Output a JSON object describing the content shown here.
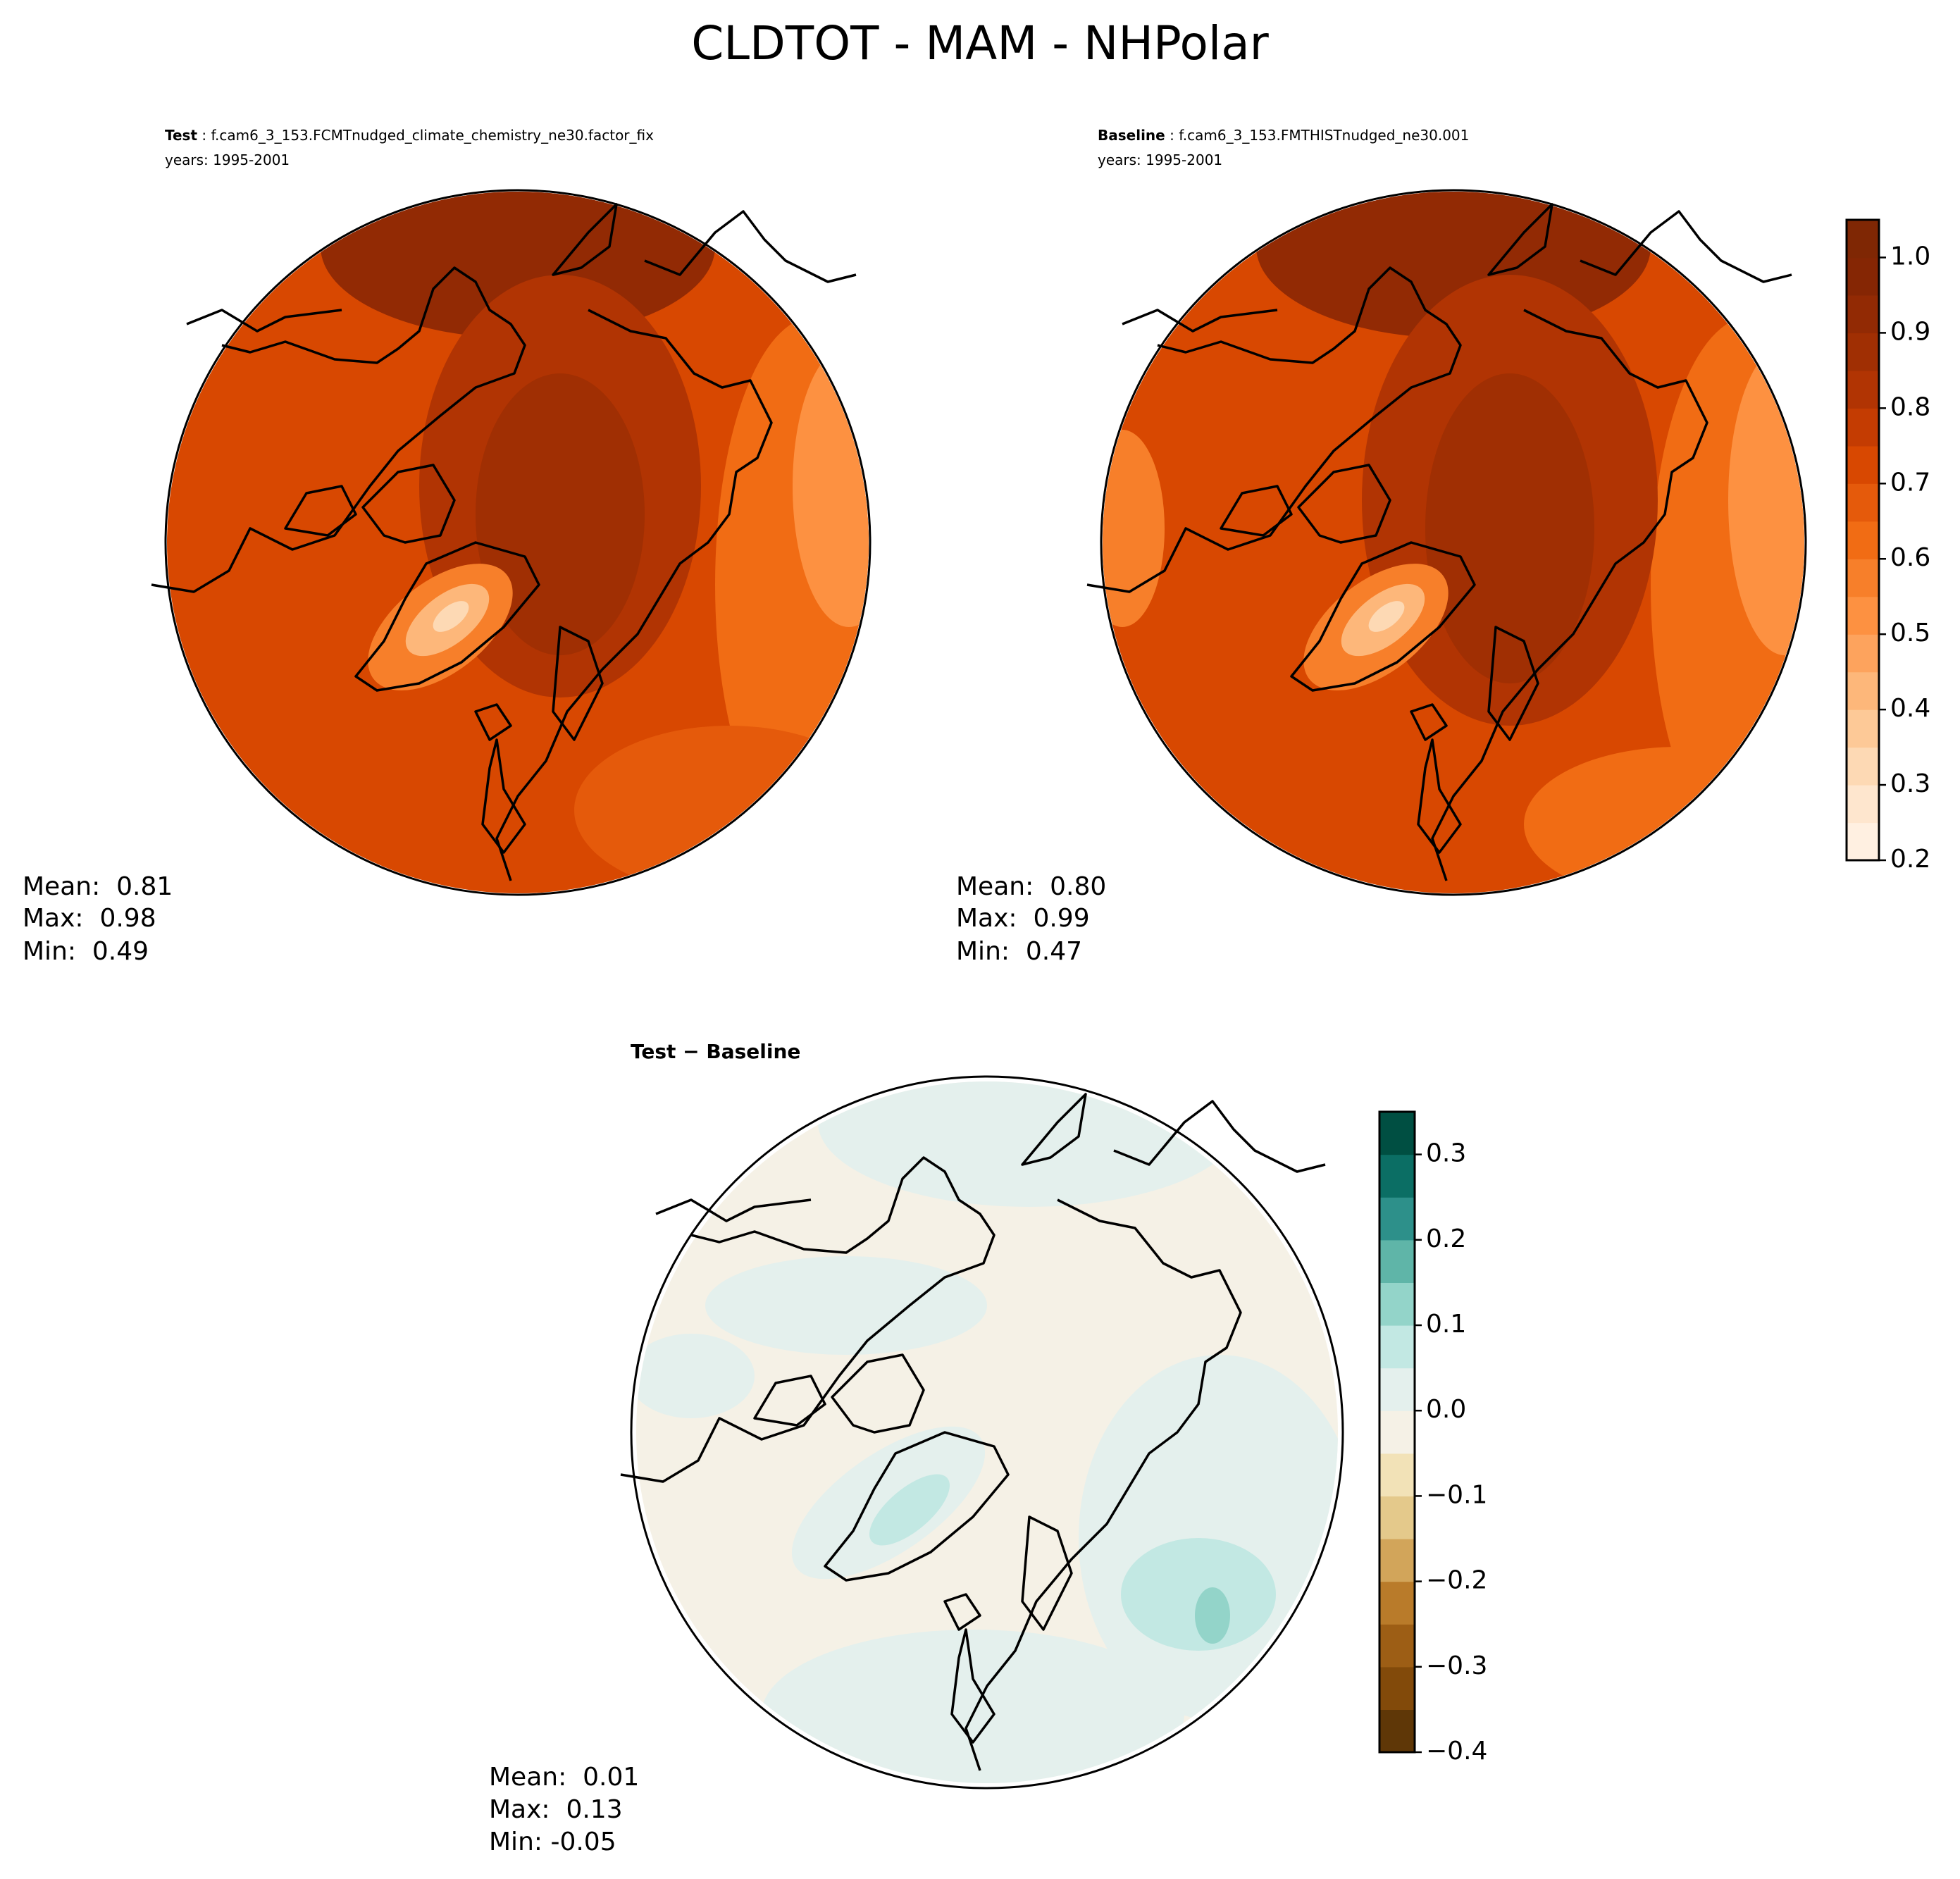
{
  "title": "CLDTOT - MAM - NHPolar",
  "panels": [
    {
      "label": "Test",
      "case": " : f.cam6_3_153.FCMTnudged_climate_chemistry_ne30.factor_fix",
      "years": "years: 1995-2001",
      "stats": [
        "Mean:  0.81",
        "Max:  0.98",
        "Min:  0.49"
      ]
    },
    {
      "label": "Baseline",
      "case": " : f.cam6_3_153.FMTHISTnudged_ne30.001",
      "years": "years: 1995-2001",
      "stats": [
        "Mean:  0.80",
        "Max:  0.99",
        "Min:  0.47"
      ]
    },
    {
      "label": "Test − Baseline",
      "stats": [
        "Mean:  0.01",
        "Max:  0.13",
        "Min: -0.05"
      ]
    }
  ],
  "colorbars": [
    {
      "lim": [
        0.2,
        1.05
      ],
      "ticks": [
        0.2,
        0.3,
        0.4,
        0.5,
        0.6,
        0.7,
        0.8,
        0.9,
        {
          "value": 1,
          "label": "1.0"
        }
      ],
      "colors": [
        "#fff0e1",
        "#fee6ce",
        "#fdd9b4",
        "#fdc997",
        "#fdb77a",
        "#fda35d",
        "#fd9141",
        "#f77f2a",
        "#f16c14",
        "#e55a0b",
        "#d84801",
        "#c43c02",
        "#b13403",
        "#a02f03",
        "#922a04",
        "#852604",
        "#7f2704"
      ]
    },
    {
      "lim": [
        -0.4,
        0.35
      ],
      "ticks": [
        {
          "value": -0.4,
          "label": "−0.4"
        },
        {
          "value": -0.3,
          "label": "−0.3"
        },
        {
          "value": -0.2,
          "label": "−0.2"
        },
        {
          "value": -0.1,
          "label": "−0.1"
        },
        {
          "value": 0,
          "label": "0.0"
        },
        0.1,
        0.2,
        0.3
      ],
      "colors": [
        "#5f3707",
        "#824a0a",
        "#9d5e15",
        "#b97b2a",
        "#d2a55a",
        "#e4c98b",
        "#f2e2b7",
        "#f5f1e6",
        "#e4f0ed",
        "#c2e8e3",
        "#93d4c9",
        "#5fb5a8",
        "#2d908a",
        "#0b6e64",
        "#004f42"
      ]
    }
  ]
}
